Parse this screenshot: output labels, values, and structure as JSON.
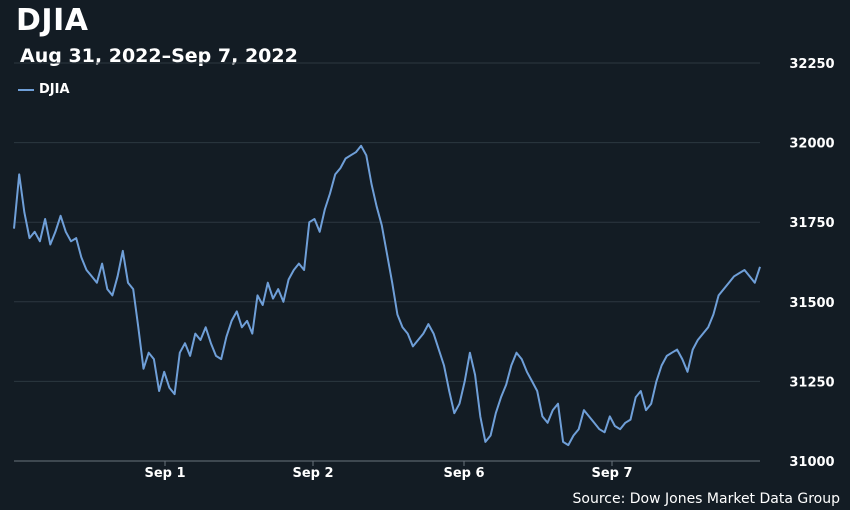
{
  "chart_data": {
    "type": "line",
    "title": "DJIA",
    "subtitle": "Aug 31, 2022–Sep 7, 2022",
    "source": "Source: Dow Jones Market Data Group",
    "xlabel": "",
    "ylabel": "",
    "ylim": [
      31000,
      32250
    ],
    "y_ticks": [
      31000,
      31250,
      31500,
      31750,
      32000,
      32250
    ],
    "x_tick_labels": [
      "Sep 1",
      "Sep 2",
      "Sep 6",
      "Sep 7"
    ],
    "grid": true,
    "legend_position": "top-left",
    "series": [
      {
        "name": "DJIA",
        "color": "#6f9fd8",
        "values": [
          31730,
          31900,
          31780,
          31700,
          31720,
          31690,
          31760,
          31680,
          31720,
          31770,
          31720,
          31690,
          31700,
          31640,
          31600,
          31580,
          31560,
          31620,
          31540,
          31520,
          31580,
          31660,
          31560,
          31540,
          31420,
          31290,
          31340,
          31320,
          31220,
          31280,
          31230,
          31210,
          31340,
          31370,
          31330,
          31400,
          31380,
          31420,
          31370,
          31330,
          31320,
          31390,
          31440,
          31470,
          31420,
          31440,
          31400,
          31520,
          31490,
          31560,
          31510,
          31540,
          31500,
          31570,
          31600,
          31620,
          31600,
          31750,
          31760,
          31720,
          31790,
          31840,
          31900,
          31920,
          31950,
          31960,
          31970,
          31990,
          31960,
          31870,
          31800,
          31740,
          31650,
          31560,
          31460,
          31420,
          31400,
          31360,
          31380,
          31400,
          31430,
          31400,
          31350,
          31300,
          31220,
          31150,
          31180,
          31250,
          31340,
          31270,
          31140,
          31060,
          31080,
          31150,
          31200,
          31240,
          31300,
          31340,
          31320,
          31280,
          31250,
          31220,
          31140,
          31120,
          31160,
          31180,
          31060,
          31050,
          31080,
          31100,
          31160,
          31140,
          31120,
          31100,
          31090,
          31140,
          31110,
          31100,
          31120,
          31130,
          31200,
          31220,
          31160,
          31180,
          31250,
          31300,
          31330,
          31340,
          31350,
          31320,
          31280,
          31350,
          31380,
          31400,
          31420,
          31460,
          31520,
          31540,
          31560,
          31580,
          31590,
          31600,
          31580,
          31560,
          31610
        ]
      }
    ]
  }
}
